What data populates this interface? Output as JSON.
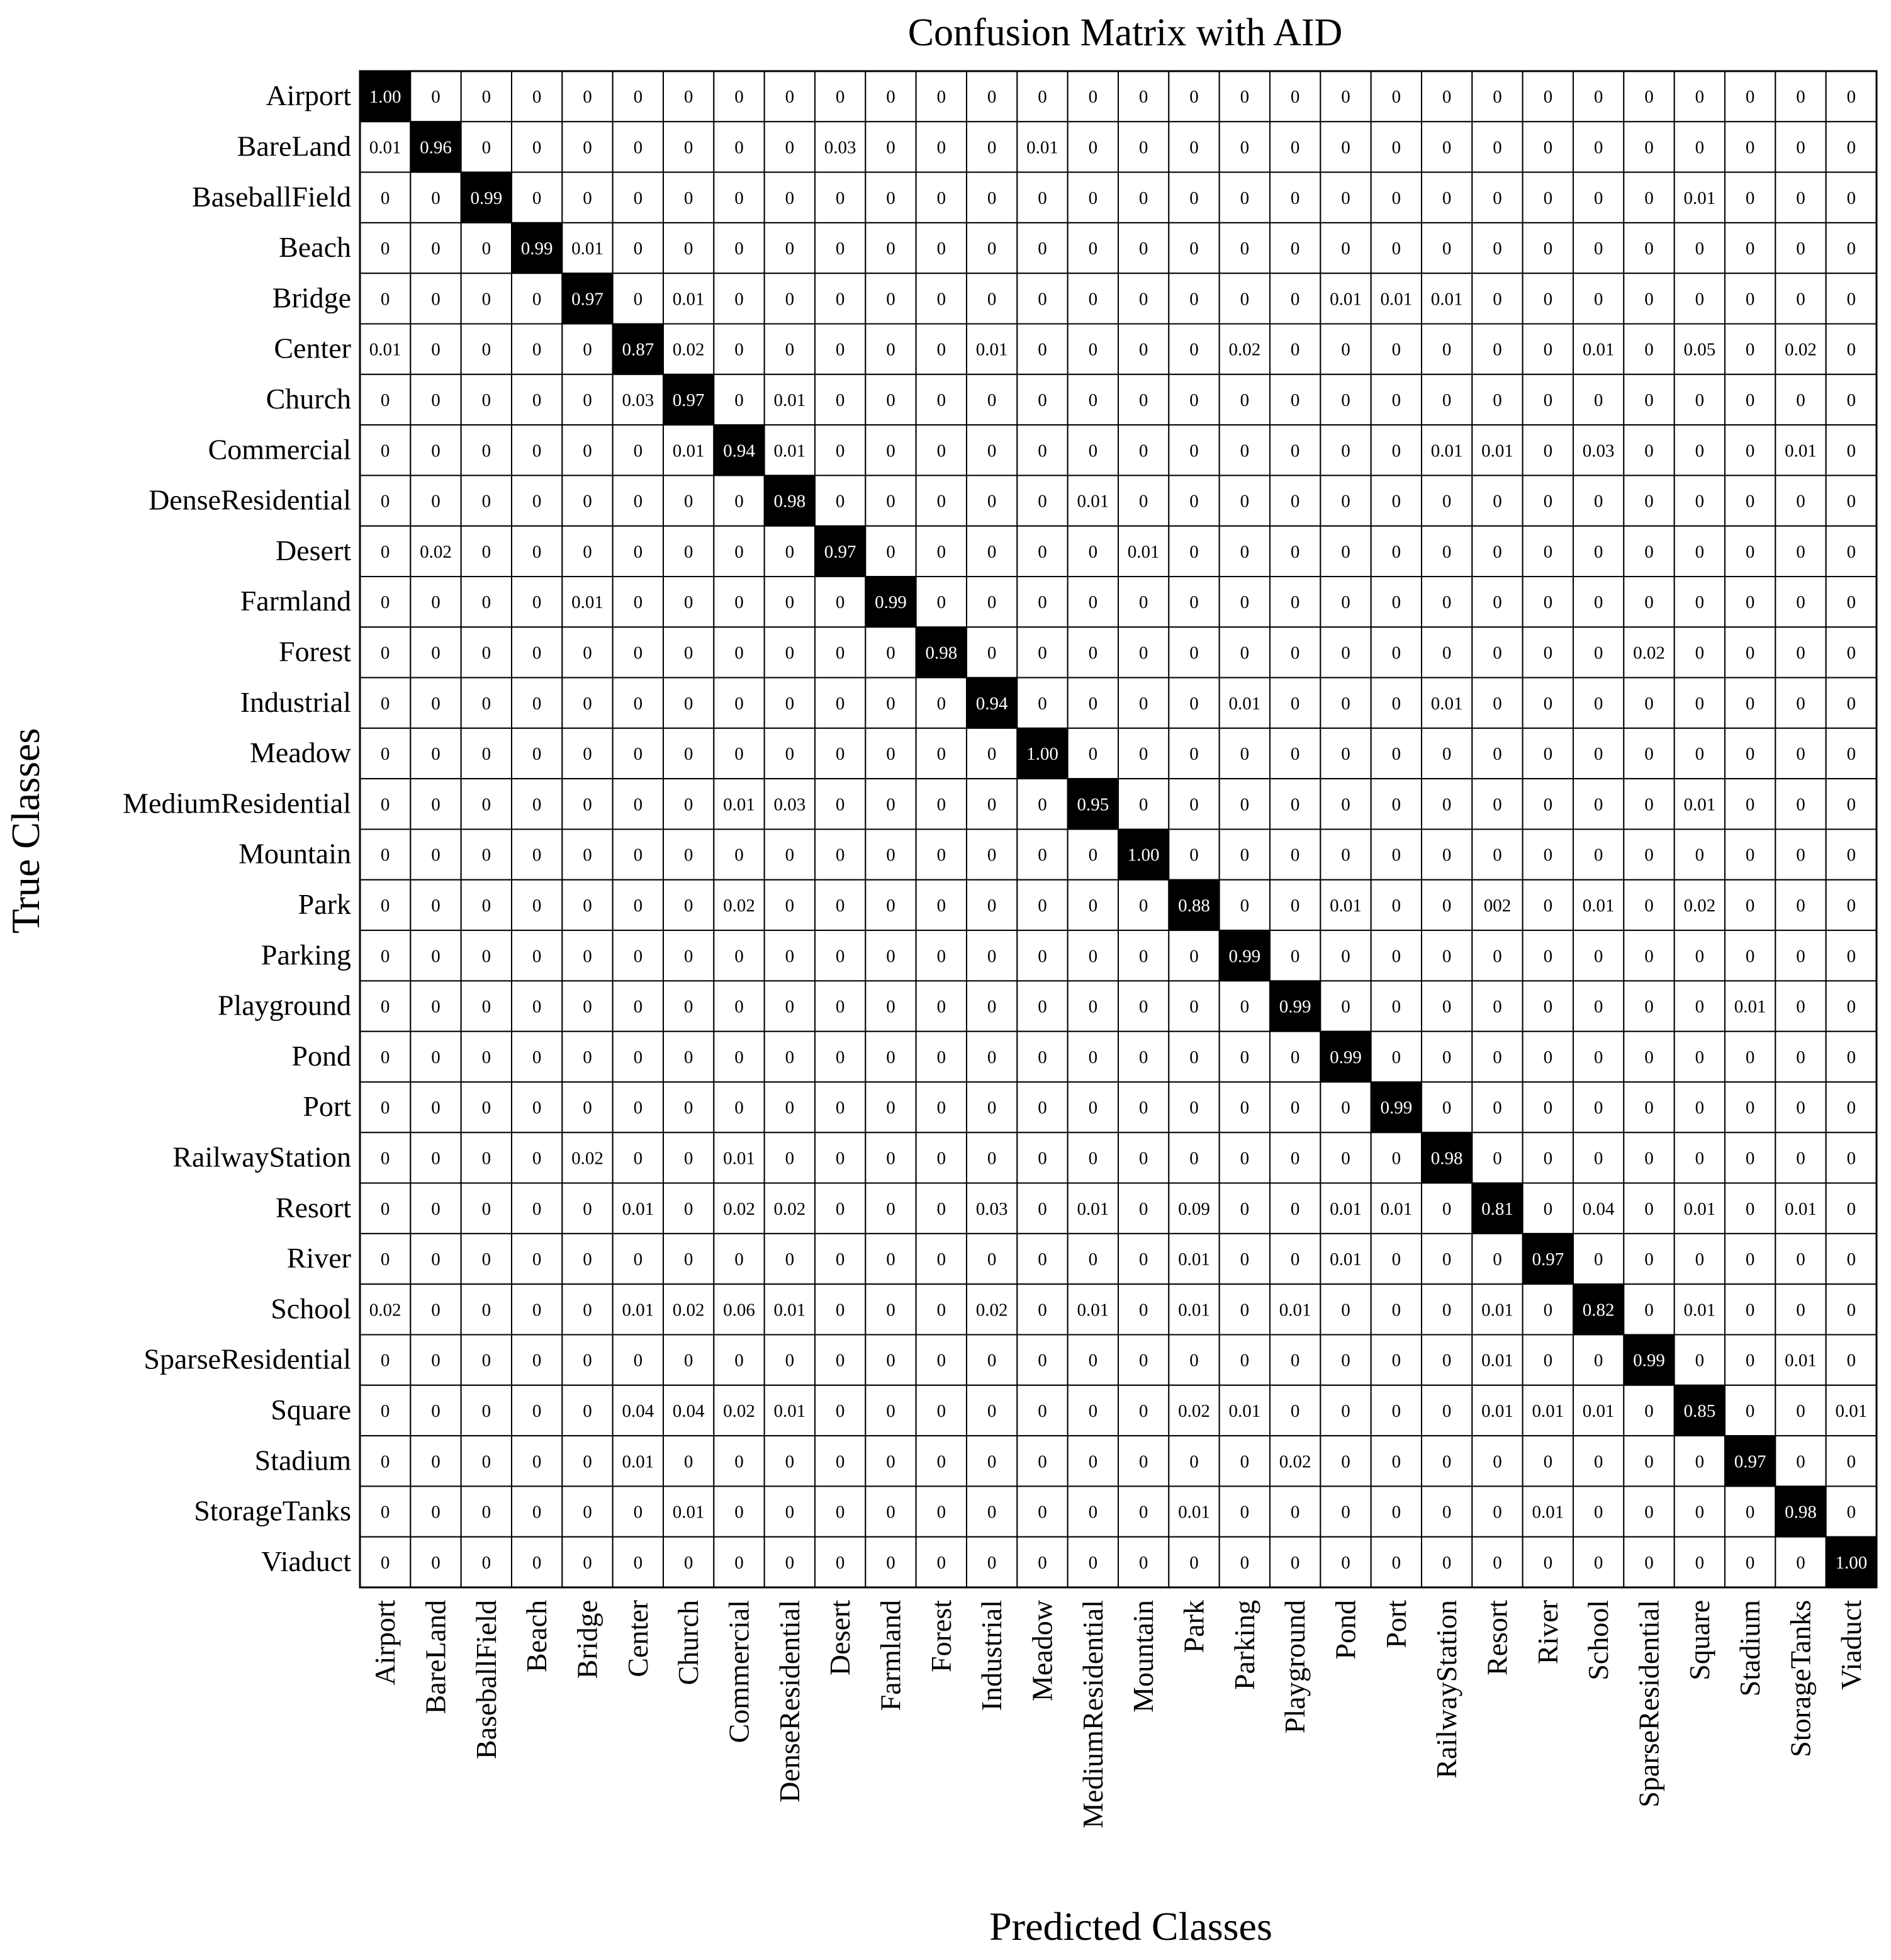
{
  "chart_data": {
    "type": "heatmap",
    "title": "Confusion Matrix with AID",
    "xlabel": "Predicted Classes",
    "ylabel": "True Classes",
    "colors": {
      "diagonal_fill": "#000000",
      "diagonal_text": "#ffffff",
      "cell_fill": "#ffffff",
      "cell_text": "#000000",
      "grid": "#000000"
    },
    "classes": [
      "Airport",
      "BareLand",
      "BaseballField",
      "Beach",
      "Bridge",
      "Center",
      "Church",
      "Commercial",
      "DenseResidential",
      "Desert",
      "Farmland",
      "Forest",
      "Industrial",
      "Meadow",
      "MediumResidential",
      "Mountain",
      "Park",
      "Parking",
      "Playground",
      "Pond",
      "Port",
      "RailwayStation",
      "Resort",
      "River",
      "School",
      "SparseResidential",
      "Square",
      "Stadium",
      "StorageTanks",
      "Viaduct"
    ],
    "matrix": [
      [
        "1.00",
        "0",
        "0",
        "0",
        "0",
        "0",
        "0",
        "0",
        "0",
        "0",
        "0",
        "0",
        "0",
        "0",
        "0",
        "0",
        "0",
        "0",
        "0",
        "0",
        "0",
        "0",
        "0",
        "0",
        "0",
        "0",
        "0",
        "0",
        "0",
        "0"
      ],
      [
        "0.01",
        "0.96",
        "0",
        "0",
        "0",
        "0",
        "0",
        "0",
        "0",
        "0.03",
        "0",
        "0",
        "0",
        "0.01",
        "0",
        "0",
        "0",
        "0",
        "0",
        "0",
        "0",
        "0",
        "0",
        "0",
        "0",
        "0",
        "0",
        "0",
        "0",
        "0"
      ],
      [
        "0",
        "0",
        "0.99",
        "0",
        "0",
        "0",
        "0",
        "0",
        "0",
        "0",
        "0",
        "0",
        "0",
        "0",
        "0",
        "0",
        "0",
        "0",
        "0",
        "0",
        "0",
        "0",
        "0",
        "0",
        "0",
        "0",
        "0.01",
        "0",
        "0",
        "0"
      ],
      [
        "0",
        "0",
        "0",
        "0.99",
        "0.01",
        "0",
        "0",
        "0",
        "0",
        "0",
        "0",
        "0",
        "0",
        "0",
        "0",
        "0",
        "0",
        "0",
        "0",
        "0",
        "0",
        "0",
        "0",
        "0",
        "0",
        "0",
        "0",
        "0",
        "0",
        "0"
      ],
      [
        "0",
        "0",
        "0",
        "0",
        "0.97",
        "0",
        "0.01",
        "0",
        "0",
        "0",
        "0",
        "0",
        "0",
        "0",
        "0",
        "0",
        "0",
        "0",
        "0",
        "0.01",
        "0.01",
        "0.01",
        "0",
        "0",
        "0",
        "0",
        "0",
        "0",
        "0",
        "0"
      ],
      [
        "0.01",
        "0",
        "0",
        "0",
        "0",
        "0.87",
        "0.02",
        "0",
        "0",
        "0",
        "0",
        "0",
        "0.01",
        "0",
        "0",
        "0",
        "0",
        "0.02",
        "0",
        "0",
        "0",
        "0",
        "0",
        "0",
        "0.01",
        "0",
        "0.05",
        "0",
        "0.02",
        "0"
      ],
      [
        "0",
        "0",
        "0",
        "0",
        "0",
        "0.03",
        "0.97",
        "0",
        "0.01",
        "0",
        "0",
        "0",
        "0",
        "0",
        "0",
        "0",
        "0",
        "0",
        "0",
        "0",
        "0",
        "0",
        "0",
        "0",
        "0",
        "0",
        "0",
        "0",
        "0",
        "0"
      ],
      [
        "0",
        "0",
        "0",
        "0",
        "0",
        "0",
        "0.01",
        "0.94",
        "0.01",
        "0",
        "0",
        "0",
        "0",
        "0",
        "0",
        "0",
        "0",
        "0",
        "0",
        "0",
        "0",
        "0.01",
        "0.01",
        "0",
        "0.03",
        "0",
        "0",
        "0",
        "0.01",
        "0"
      ],
      [
        "0",
        "0",
        "0",
        "0",
        "0",
        "0",
        "0",
        "0",
        "0.98",
        "0",
        "0",
        "0",
        "0",
        "0",
        "0.01",
        "0",
        "0",
        "0",
        "0",
        "0",
        "0",
        "0",
        "0",
        "0",
        "0",
        "0",
        "0",
        "0",
        "0",
        "0"
      ],
      [
        "0",
        "0.02",
        "0",
        "0",
        "0",
        "0",
        "0",
        "0",
        "0",
        "0.97",
        "0",
        "0",
        "0",
        "0",
        "0",
        "0.01",
        "0",
        "0",
        "0",
        "0",
        "0",
        "0",
        "0",
        "0",
        "0",
        "0",
        "0",
        "0",
        "0",
        "0"
      ],
      [
        "0",
        "0",
        "0",
        "0",
        "0.01",
        "0",
        "0",
        "0",
        "0",
        "0",
        "0.99",
        "0",
        "0",
        "0",
        "0",
        "0",
        "0",
        "0",
        "0",
        "0",
        "0",
        "0",
        "0",
        "0",
        "0",
        "0",
        "0",
        "0",
        "0",
        "0"
      ],
      [
        "0",
        "0",
        "0",
        "0",
        "0",
        "0",
        "0",
        "0",
        "0",
        "0",
        "0",
        "0.98",
        "0",
        "0",
        "0",
        "0",
        "0",
        "0",
        "0",
        "0",
        "0",
        "0",
        "0",
        "0",
        "0",
        "0.02",
        "0",
        "0",
        "0",
        "0"
      ],
      [
        "0",
        "0",
        "0",
        "0",
        "0",
        "0",
        "0",
        "0",
        "0",
        "0",
        "0",
        "0",
        "0.94",
        "0",
        "0",
        "0",
        "0",
        "0.01",
        "0",
        "0",
        "0",
        "0.01",
        "0",
        "0",
        "0",
        "0",
        "0",
        "0",
        "0",
        "0"
      ],
      [
        "0",
        "0",
        "0",
        "0",
        "0",
        "0",
        "0",
        "0",
        "0",
        "0",
        "0",
        "0",
        "0",
        "1.00",
        "0",
        "0",
        "0",
        "0",
        "0",
        "0",
        "0",
        "0",
        "0",
        "0",
        "0",
        "0",
        "0",
        "0",
        "0",
        "0"
      ],
      [
        "0",
        "0",
        "0",
        "0",
        "0",
        "0",
        "0",
        "0.01",
        "0.03",
        "0",
        "0",
        "0",
        "0",
        "0",
        "0.95",
        "0",
        "0",
        "0",
        "0",
        "0",
        "0",
        "0",
        "0",
        "0",
        "0",
        "0",
        "0.01",
        "0",
        "0",
        "0"
      ],
      [
        "0",
        "0",
        "0",
        "0",
        "0",
        "0",
        "0",
        "0",
        "0",
        "0",
        "0",
        "0",
        "0",
        "0",
        "0",
        "1.00",
        "0",
        "0",
        "0",
        "0",
        "0",
        "0",
        "0",
        "0",
        "0",
        "0",
        "0",
        "0",
        "0",
        "0"
      ],
      [
        "0",
        "0",
        "0",
        "0",
        "0",
        "0",
        "0",
        "0.02",
        "0",
        "0",
        "0",
        "0",
        "0",
        "0",
        "0",
        "0",
        "0.88",
        "0",
        "0",
        "0.01",
        "0",
        "0",
        "002",
        "0",
        "0.01",
        "0",
        "0.02",
        "0",
        "0",
        "0"
      ],
      [
        "0",
        "0",
        "0",
        "0",
        "0",
        "0",
        "0",
        "0",
        "0",
        "0",
        "0",
        "0",
        "0",
        "0",
        "0",
        "0",
        "0",
        "0.99",
        "0",
        "0",
        "0",
        "0",
        "0",
        "0",
        "0",
        "0",
        "0",
        "0",
        "0",
        "0"
      ],
      [
        "0",
        "0",
        "0",
        "0",
        "0",
        "0",
        "0",
        "0",
        "0",
        "0",
        "0",
        "0",
        "0",
        "0",
        "0",
        "0",
        "0",
        "0",
        "0.99",
        "0",
        "0",
        "0",
        "0",
        "0",
        "0",
        "0",
        "0",
        "0.01",
        "0",
        "0"
      ],
      [
        "0",
        "0",
        "0",
        "0",
        "0",
        "0",
        "0",
        "0",
        "0",
        "0",
        "0",
        "0",
        "0",
        "0",
        "0",
        "0",
        "0",
        "0",
        "0",
        "0.99",
        "0",
        "0",
        "0",
        "0",
        "0",
        "0",
        "0",
        "0",
        "0",
        "0"
      ],
      [
        "0",
        "0",
        "0",
        "0",
        "0",
        "0",
        "0",
        "0",
        "0",
        "0",
        "0",
        "0",
        "0",
        "0",
        "0",
        "0",
        "0",
        "0",
        "0",
        "0",
        "0.99",
        "0",
        "0",
        "0",
        "0",
        "0",
        "0",
        "0",
        "0",
        "0"
      ],
      [
        "0",
        "0",
        "0",
        "0",
        "0.02",
        "0",
        "0",
        "0.01",
        "0",
        "0",
        "0",
        "0",
        "0",
        "0",
        "0",
        "0",
        "0",
        "0",
        "0",
        "0",
        "0",
        "0.98",
        "0",
        "0",
        "0",
        "0",
        "0",
        "0",
        "0",
        "0"
      ],
      [
        "0",
        "0",
        "0",
        "0",
        "0",
        "0.01",
        "0",
        "0.02",
        "0.02",
        "0",
        "0",
        "0",
        "0.03",
        "0",
        "0.01",
        "0",
        "0.09",
        "0",
        "0",
        "0.01",
        "0.01",
        "0",
        "0.81",
        "0",
        "0.04",
        "0",
        "0.01",
        "0",
        "0.01",
        "0"
      ],
      [
        "0",
        "0",
        "0",
        "0",
        "0",
        "0",
        "0",
        "0",
        "0",
        "0",
        "0",
        "0",
        "0",
        "0",
        "0",
        "0",
        "0.01",
        "0",
        "0",
        "0.01",
        "0",
        "0",
        "0",
        "0.97",
        "0",
        "0",
        "0",
        "0",
        "0",
        "0"
      ],
      [
        "0.02",
        "0",
        "0",
        "0",
        "0",
        "0.01",
        "0.02",
        "0.06",
        "0.01",
        "0",
        "0",
        "0",
        "0.02",
        "0",
        "0.01",
        "0",
        "0.01",
        "0",
        "0.01",
        "0",
        "0",
        "0",
        "0.01",
        "0",
        "0.82",
        "0",
        "0.01",
        "0",
        "0",
        "0"
      ],
      [
        "0",
        "0",
        "0",
        "0",
        "0",
        "0",
        "0",
        "0",
        "0",
        "0",
        "0",
        "0",
        "0",
        "0",
        "0",
        "0",
        "0",
        "0",
        "0",
        "0",
        "0",
        "0",
        "0.01",
        "0",
        "0",
        "0.99",
        "0",
        "0",
        "0.01",
        "0"
      ],
      [
        "0",
        "0",
        "0",
        "0",
        "0",
        "0.04",
        "0.04",
        "0.02",
        "0.01",
        "0",
        "0",
        "0",
        "0",
        "0",
        "0",
        "0",
        "0.02",
        "0.01",
        "0",
        "0",
        "0",
        "0",
        "0.01",
        "0.01",
        "0.01",
        "0",
        "0.85",
        "0",
        "0",
        "0.01"
      ],
      [
        "0",
        "0",
        "0",
        "0",
        "0",
        "0.01",
        "0",
        "0",
        "0",
        "0",
        "0",
        "0",
        "0",
        "0",
        "0",
        "0",
        "0",
        "0",
        "0.02",
        "0",
        "0",
        "0",
        "0",
        "0",
        "0",
        "0",
        "0",
        "0.97",
        "0",
        "0"
      ],
      [
        "0",
        "0",
        "0",
        "0",
        "0",
        "0",
        "0.01",
        "0",
        "0",
        "0",
        "0",
        "0",
        "0",
        "0",
        "0",
        "0",
        "0.01",
        "0",
        "0",
        "0",
        "0",
        "0",
        "0",
        "0.01",
        "0",
        "0",
        "0",
        "0",
        "0.98",
        "0"
      ],
      [
        "0",
        "0",
        "0",
        "0",
        "0",
        "0",
        "0",
        "0",
        "0",
        "0",
        "0",
        "0",
        "0",
        "0",
        "0",
        "0",
        "0",
        "0",
        "0",
        "0",
        "0",
        "0",
        "0",
        "0",
        "0",
        "0",
        "0",
        "0",
        "0",
        "1.00"
      ]
    ]
  }
}
